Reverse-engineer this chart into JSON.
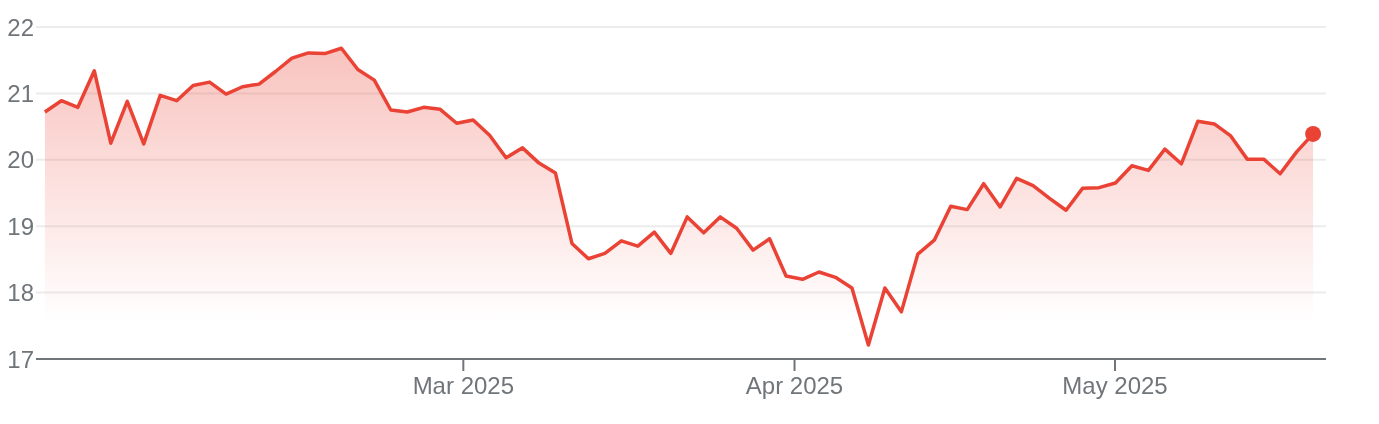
{
  "chart_data": {
    "type": "area",
    "x": [
      "2025-01-20T20:00",
      "2025-01-22T09:00",
      "2025-01-23T22:00",
      "2025-01-25T11:00",
      "2025-01-27T00:00",
      "2025-01-28T13:00",
      "2025-01-30T02:00",
      "2025-01-31T15:00",
      "2025-02-02T04:00",
      "2025-02-03T17:00",
      "2025-02-05T06:00",
      "2025-02-06T19:00",
      "2025-02-08T08:00",
      "2025-02-09T21:00",
      "2025-02-11T10:00",
      "2025-02-12T23:00",
      "2025-02-14T12:00",
      "2025-02-16T01:00",
      "2025-02-17T14:00",
      "2025-02-19T03:00",
      "2025-02-20T16:00",
      "2025-02-22T05:00",
      "2025-02-23T18:00",
      "2025-02-25T07:00",
      "2025-02-26T20:00",
      "2025-02-28T09:00",
      "2025-03-01T22:00",
      "2025-03-03T11:00",
      "2025-03-05T00:00",
      "2025-03-06T13:00",
      "2025-03-08T02:00",
      "2025-03-09T15:00",
      "2025-03-11T04:00",
      "2025-03-12T17:00",
      "2025-03-14T06:00",
      "2025-03-15T19:00",
      "2025-03-17T08:00",
      "2025-03-18T21:00",
      "2025-03-20T10:00",
      "2025-03-21T23:00",
      "2025-03-23T12:00",
      "2025-03-25T01:00",
      "2025-03-26T14:00",
      "2025-03-28T03:00",
      "2025-03-29T16:00",
      "2025-03-31T05:00",
      "2025-04-01T18:00",
      "2025-04-03T07:00",
      "2025-04-04T20:00",
      "2025-04-06T09:00",
      "2025-04-07T22:00",
      "2025-04-09T11:00",
      "2025-04-11T00:00",
      "2025-04-12T13:00",
      "2025-04-14T02:00",
      "2025-04-15T15:00",
      "2025-04-17T04:00",
      "2025-04-18T17:00",
      "2025-04-20T06:00",
      "2025-04-21T19:00",
      "2025-04-23T08:00",
      "2025-04-24T21:00",
      "2025-04-26T10:00",
      "2025-04-27T23:00",
      "2025-04-29T12:00",
      "2025-05-01T01:00",
      "2025-05-02T14:00",
      "2025-05-04T03:00",
      "2025-05-05T16:00",
      "2025-05-07T05:00",
      "2025-05-08T18:00",
      "2025-05-10T07:00",
      "2025-05-11T20:00",
      "2025-05-13T09:00",
      "2025-05-14T22:00",
      "2025-05-16T11:00",
      "2025-05-18T00:00",
      "2025-05-19T13:00"
    ],
    "series": [
      {
        "color": "#ea4335",
        "values": [
          20.72,
          20.89,
          20.79,
          21.34,
          20.25,
          20.88,
          20.24,
          20.97,
          20.89,
          21.12,
          21.17,
          20.99,
          21.1,
          21.14,
          21.33,
          21.53,
          21.61,
          21.6,
          21.68,
          21.36,
          21.2,
          20.75,
          20.72,
          20.79,
          20.76,
          20.55,
          20.6,
          20.37,
          20.03,
          20.18,
          19.95,
          19.8,
          18.74,
          18.51,
          18.59,
          18.78,
          18.7,
          18.91,
          18.59,
          19.14,
          18.9,
          19.14,
          18.97,
          18.64,
          18.81,
          18.25,
          18.2,
          18.31,
          18.23,
          18.07,
          17.21,
          18.07,
          17.71,
          18.58,
          18.79,
          19.3,
          19.25,
          19.64,
          19.29,
          19.72,
          19.61,
          19.42,
          19.24,
          19.57,
          19.58,
          19.65,
          19.91,
          19.84,
          20.16,
          19.94,
          20.58,
          20.54,
          20.36,
          20.01,
          20.01,
          19.79,
          20.12,
          20.39
        ]
      },
      {
        "type": "scatter",
        "color": "#ea4335",
        "marker": "circle",
        "x": [
          "2025-05-19T13:00"
        ],
        "values": [
          20.39
        ]
      }
    ],
    "xlim": [
      "2025-01-20",
      "2025-05-20T18:00"
    ],
    "xticks": [
      {
        "value": "2025-03-01",
        "label": "Mar 2025"
      },
      {
        "value": "2025-04-01",
        "label": "Apr 2025"
      },
      {
        "value": "2025-05-01",
        "label": "May 2025"
      }
    ],
    "ylim": [
      17,
      22
    ],
    "yticks": [
      17,
      18,
      19,
      20,
      21,
      22
    ],
    "grid": "y"
  }
}
